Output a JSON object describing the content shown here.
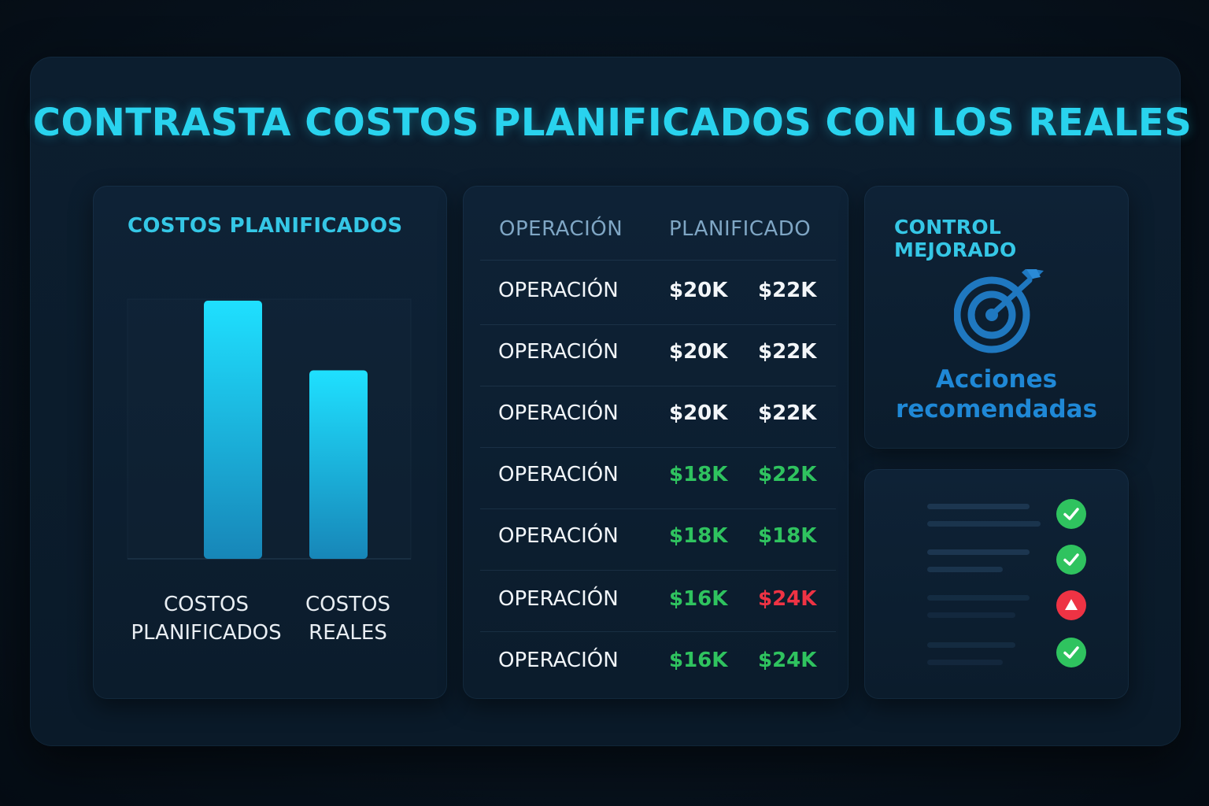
{
  "title": "CONTRASTA COSTOS PLANIFICADOS CON LOS REALES",
  "colors": {
    "accent": "#29d3ee",
    "bar_top": "#1fe0ff",
    "bar_bottom": "#1786b8",
    "green": "#2fc35f",
    "red": "#ee3344",
    "icon_blue": "#1f88d6"
  },
  "chart_data": {
    "type": "bar",
    "title": "COSTOS PLANIFICADOS",
    "categories": [
      "COSTOS PLANIFICADOS",
      "COSTOS REALES"
    ],
    "category_lines": [
      [
        "COSTOS",
        "PLANIFICADOS"
      ],
      [
        "COSTOS",
        "REALES"
      ]
    ],
    "values": [
      100,
      73
    ],
    "ylim": [
      0,
      100
    ],
    "grid": false,
    "xlabel": "",
    "ylabel": ""
  },
  "table": {
    "headers": [
      "OPERACIÓN",
      "PLANIFICADO"
    ],
    "rows": [
      {
        "label": "OPERACIÓN",
        "planned": "$20K",
        "actual": "$22K",
        "planned_status": "neutral",
        "actual_status": "neutral"
      },
      {
        "label": "OPERACIÓN",
        "planned": "$20K",
        "actual": "$22K",
        "planned_status": "neutral",
        "actual_status": "neutral"
      },
      {
        "label": "OPERACIÓN",
        "planned": "$20K",
        "actual": "$22K",
        "planned_status": "neutral",
        "actual_status": "neutral"
      },
      {
        "label": "OPERACIÓN",
        "planned": "$18K",
        "actual": "$22K",
        "planned_status": "good",
        "actual_status": "good"
      },
      {
        "label": "OPERACIÓN",
        "planned": "$18K",
        "actual": "$18K",
        "planned_status": "good",
        "actual_status": "good"
      },
      {
        "label": "OPERACIÓN",
        "planned": "$16K",
        "actual": "$24K",
        "planned_status": "good",
        "actual_status": "bad"
      },
      {
        "label": "OPERACIÓN",
        "planned": "$16K",
        "actual": "$24K",
        "planned_status": "good",
        "actual_status": "good"
      }
    ]
  },
  "control": {
    "title": "CONTROL MEJORADO",
    "icon": "target-arrow-icon",
    "actions_line1": "Acciones",
    "actions_line2": "recomendadas"
  },
  "checklist": {
    "items": [
      {
        "status": "ok",
        "icon": "check-icon"
      },
      {
        "status": "ok",
        "icon": "check-icon"
      },
      {
        "status": "warning",
        "icon": "warning-triangle-icon"
      },
      {
        "status": "ok",
        "icon": "check-icon"
      }
    ]
  }
}
